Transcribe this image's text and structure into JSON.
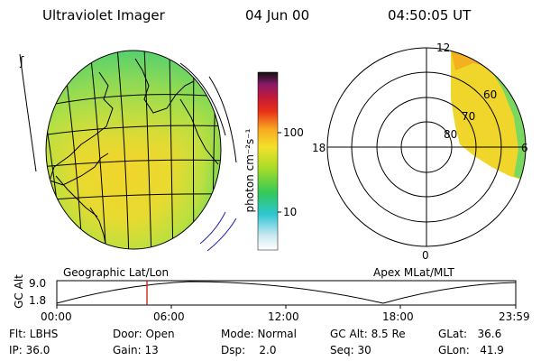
{
  "header": {
    "title": "Ultraviolet Imager",
    "date": "04 Jun 00",
    "time": "04:50:05 UT"
  },
  "colorbar": {
    "unit_label": "photon cm⁻²s⁻¹",
    "tick_labels": [
      "100",
      "10"
    ]
  },
  "panels": {
    "left_label": "Geographic Lat/Lon",
    "right_label": "Apex MLat/MLT"
  },
  "polar_plot": {
    "mlt_labels": {
      "top": "12",
      "left": "18",
      "right": "6",
      "bottom": "0"
    },
    "lat_labels": [
      "60",
      "70",
      "80"
    ]
  },
  "altitude_strip": {
    "axis_label": "GC Alt",
    "y_ticks": [
      "9.0",
      "1.8"
    ],
    "x_ticks": [
      "00:00",
      "06:00",
      "12:00",
      "18:00",
      "23:59"
    ],
    "cursor_color": "#d00000"
  },
  "info": {
    "flt": "Flt: LBHS",
    "ip": "IP: 36.0",
    "door": "Door: Open",
    "gain": "Gain: 13",
    "mode": "Mode: Normal",
    "dsp": "Dsp:    2.0",
    "gc_alt": "GC Alt: 8.5 Re",
    "seq": "Seq: 30",
    "glat": "GLat:   36.6",
    "glon": "GLon:   41.9"
  }
}
